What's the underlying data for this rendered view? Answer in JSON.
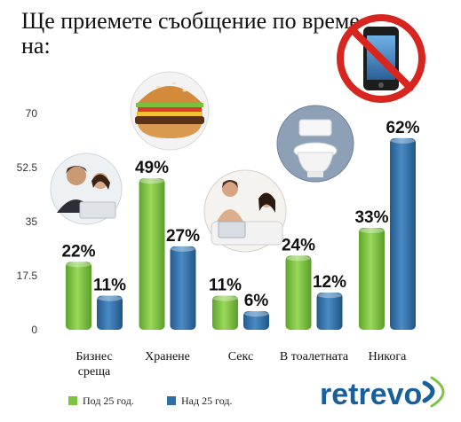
{
  "title": [
    "Ще приемете съобщение по време",
    "на:"
  ],
  "logo": "retrevo",
  "colors": {
    "green": "#7cc243",
    "blue": "#2f6ea6",
    "logo": "#1a5f9a"
  },
  "icons": [
    "businesspeople-photo",
    "burger-photo",
    "couple-in-bed-photo",
    "toilet-photo",
    "crossed-out-phone-icon"
  ],
  "chart_data": {
    "type": "bar",
    "categories": [
      [
        "Бизнес",
        "среща"
      ],
      [
        "Хранене"
      ],
      [
        "Секс"
      ],
      [
        "В тоалетната"
      ],
      [
        "Никога"
      ]
    ],
    "series": [
      {
        "name": "Под 25 год.",
        "color": "#7cc243",
        "values": [
          22,
          49,
          11,
          24,
          33
        ],
        "labels": [
          "22%",
          "49%",
          "11%",
          "24%",
          "33%"
        ]
      },
      {
        "name": "Над 25 год.",
        "color": "#2f6ea6",
        "values": [
          11,
          27,
          6,
          12,
          62
        ],
        "labels": [
          "11%",
          "27%",
          "6%",
          "12%",
          "62%"
        ]
      }
    ],
    "yticks": [
      "0",
      "17.5",
      "35",
      "52.5",
      "70"
    ],
    "ylim": [
      0,
      70
    ],
    "grid": false,
    "legend": "bottom-left"
  }
}
